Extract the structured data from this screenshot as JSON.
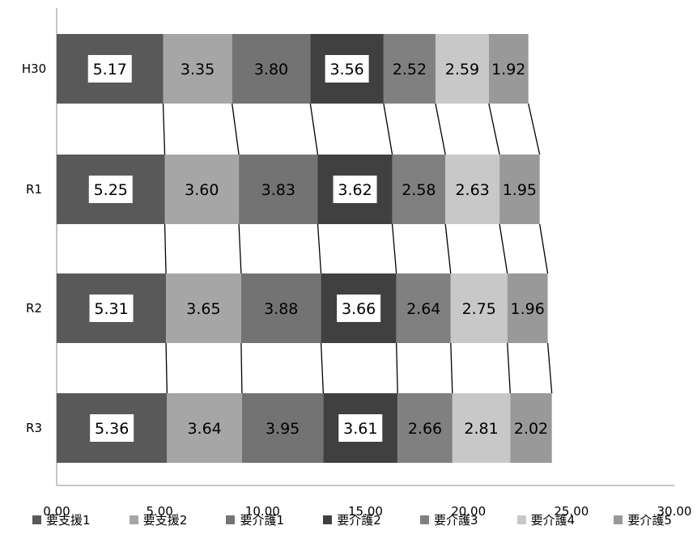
{
  "chart_data": {
    "type": "bar",
    "orientation": "horizontal",
    "stacked": true,
    "categories": [
      "H30",
      "R1",
      "R2",
      "R3"
    ],
    "series": [
      {
        "name": "要支援1",
        "color": "#595959",
        "values": [
          5.17,
          5.25,
          5.31,
          5.36
        ],
        "label_box": true
      },
      {
        "name": "要支援2",
        "color": "#a6a6a6",
        "values": [
          3.35,
          3.6,
          3.65,
          3.64
        ],
        "label_box": false
      },
      {
        "name": "要介護1",
        "color": "#737373",
        "values": [
          3.8,
          3.83,
          3.88,
          3.95
        ],
        "label_box": false
      },
      {
        "name": "要介護2",
        "color": "#404040",
        "values": [
          3.56,
          3.62,
          3.66,
          3.61
        ],
        "label_box": true
      },
      {
        "name": "要介護3",
        "color": "#808080",
        "values": [
          2.52,
          2.58,
          2.64,
          2.66
        ],
        "label_box": false
      },
      {
        "name": "要介護4",
        "color": "#c8c8c8",
        "values": [
          2.59,
          2.63,
          2.75,
          2.81
        ],
        "label_box": false
      },
      {
        "name": "要介護5",
        "color": "#999999",
        "values": [
          1.92,
          1.95,
          1.96,
          2.02
        ],
        "label_box": false
      }
    ],
    "xlim": [
      0,
      30
    ],
    "xticks": [
      "0.00",
      "5.00",
      "10.00",
      "15.00",
      "20.00",
      "25.00",
      "30.00"
    ],
    "series_lines": true,
    "grid": false,
    "legend_position": "bottom",
    "legend_marker": "■"
  }
}
